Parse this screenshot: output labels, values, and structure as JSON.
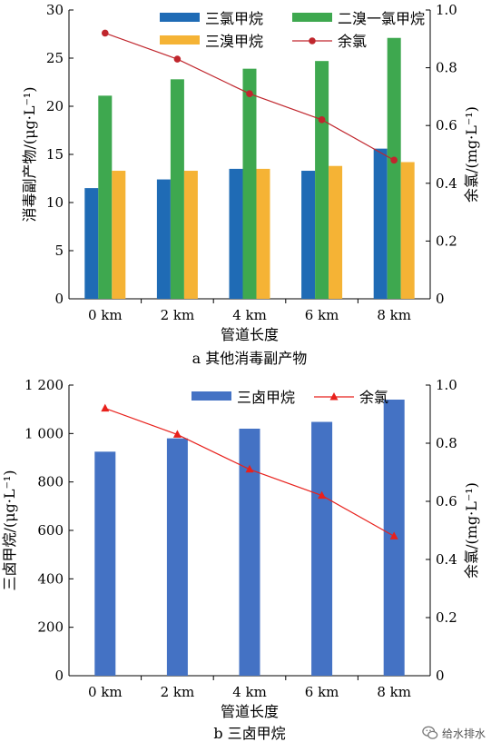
{
  "chart_data": [
    {
      "type": "bar",
      "subtitle": "a 其他消毒副产物",
      "xlabel": "管道长度",
      "ylabel": "消毒副产物/(μg·L⁻¹)",
      "y2label": "余氯/(mg·L⁻¹)",
      "categories": [
        "0 km",
        "2 km",
        "4 km",
        "6 km",
        "8 km"
      ],
      "ylim": [
        0,
        30
      ],
      "yticks": [
        0,
        5,
        10,
        15,
        20,
        25,
        30
      ],
      "y2lim": [
        0,
        1.0
      ],
      "y2ticks": [
        "0",
        "0.2",
        "0.4",
        "0.6",
        "0.8",
        "1.0"
      ],
      "grid": false,
      "legend_position": "top",
      "series": [
        {
          "name": "三氯甲烷",
          "kind": "bar",
          "axis": "left",
          "color": "#1f6bb5",
          "values": [
            11.5,
            12.4,
            13.5,
            13.3,
            15.6
          ]
        },
        {
          "name": "二溴一氯甲烷",
          "kind": "bar",
          "axis": "left",
          "color": "#3ea84f",
          "values": [
            21.1,
            22.8,
            23.9,
            24.7,
            27.1
          ]
        },
        {
          "name": "三溴甲烷",
          "kind": "bar",
          "axis": "left",
          "color": "#f5b335",
          "values": [
            13.3,
            13.3,
            13.5,
            13.8,
            14.2
          ]
        },
        {
          "name": "余氯",
          "kind": "line",
          "marker": "circle",
          "axis": "right",
          "color": "#c0262d",
          "values": [
            0.92,
            0.83,
            0.71,
            0.62,
            0.48
          ]
        }
      ]
    },
    {
      "type": "bar",
      "subtitle": "b 三卤甲烷",
      "xlabel": "管道长度",
      "ylabel": "三卤甲烷/(μg·L⁻¹)",
      "y2label": "余氯/(mg·L⁻¹)",
      "categories": [
        "0 km",
        "2 km",
        "4 km",
        "6 km",
        "8 km"
      ],
      "ylim": [
        0,
        1200
      ],
      "yticks": [
        "0",
        "200",
        "400",
        "600",
        "800",
        "1 000",
        "1 200"
      ],
      "y2lim": [
        0,
        1.0
      ],
      "y2ticks": [
        "0",
        "0.2",
        "0.4",
        "0.6",
        "0.8",
        "1.0"
      ],
      "grid": false,
      "legend_position": "top",
      "series": [
        {
          "name": "三卤甲烷",
          "kind": "bar",
          "axis": "left",
          "color": "#4472c4",
          "values": [
            925,
            980,
            1020,
            1048,
            1140
          ]
        },
        {
          "name": "余氯",
          "kind": "line",
          "marker": "triangle",
          "axis": "right",
          "color": "#e8211c",
          "values": [
            0.92,
            0.83,
            0.71,
            0.62,
            0.48
          ]
        }
      ]
    }
  ],
  "watermark": {
    "text": "给水排水",
    "icon": "wechat-icon"
  }
}
